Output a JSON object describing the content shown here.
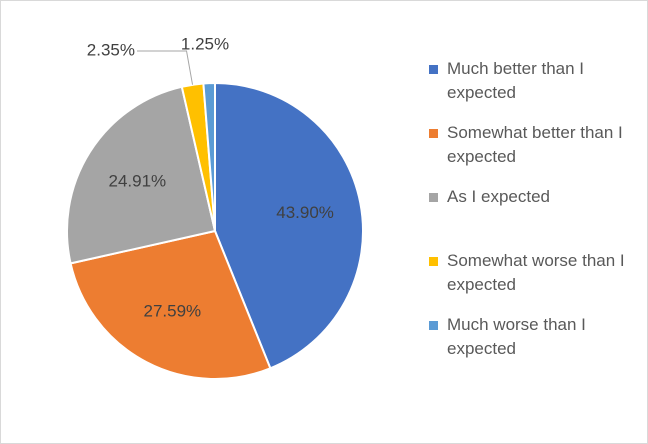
{
  "chart_data": {
    "type": "pie",
    "categories": [
      "Much better than I expected",
      "Somewhat better than I expected",
      "As I expected",
      "Somewhat worse than I expected",
      "Much worse than I expected"
    ],
    "values": [
      43.9,
      27.59,
      24.91,
      2.35,
      1.25
    ],
    "value_labels": [
      "43.90%",
      "27.59%",
      "24.91%",
      "2.35%",
      "1.25%"
    ],
    "colors": [
      "#4472c4",
      "#ed7d31",
      "#a5a5a5",
      "#ffc000",
      "#5b9bd5"
    ]
  }
}
